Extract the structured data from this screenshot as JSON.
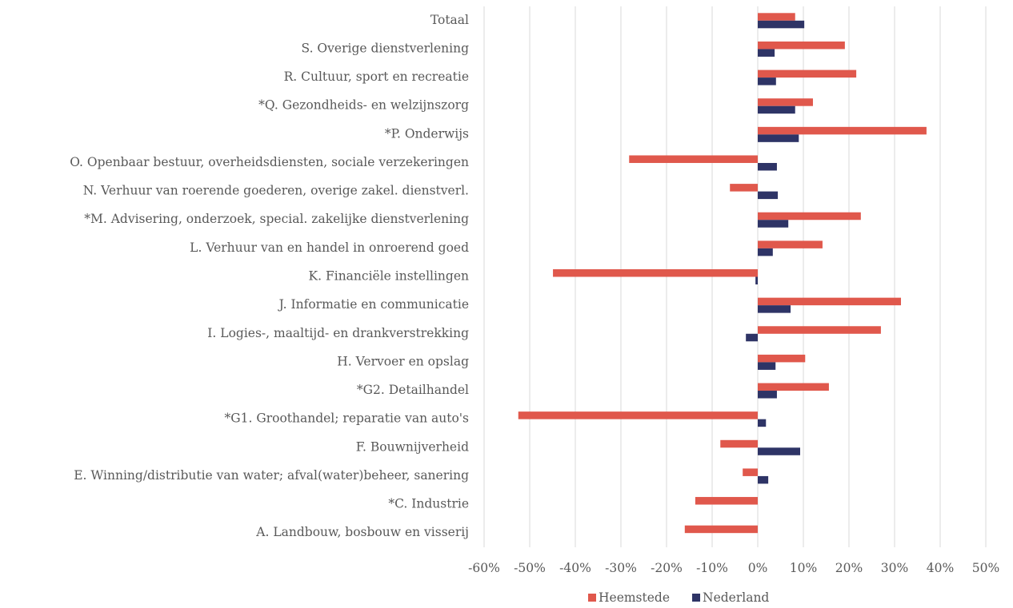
{
  "chart_data": {
    "type": "hbar",
    "categories": [
      "Totaal",
      "S. Overige dienstverlening",
      "R. Cultuur, sport en recreatie",
      "*Q. Gezondheids- en welzijnszorg",
      "*P. Onderwijs",
      "O. Openbaar bestuur, overheidsdiensten, sociale verzekeringen",
      "N. Verhuur van roerende goederen, overige zakel. dienstverl.",
      "*M. Advisering, onderzoek, special. zakelijke dienstverlening",
      "L. Verhuur van en handel in onroerend goed",
      "K. Financiële instellingen",
      "J. Informatie en communicatie",
      "I. Logies-, maaltijd- en drankverstrekking",
      "H. Vervoer en opslag",
      "*G2. Detailhandel",
      "*G1. Groothandel; reparatie van auto's",
      "F. Bouwnijverheid",
      "E. Winning/distributie van water; afval(water)beheer, sanering",
      "*C. Industrie",
      "A. Landbouw, bosbouw en visserij"
    ],
    "series": [
      {
        "name": "Heemstede",
        "color": "#e0584c",
        "values": [
          8.2,
          19.1,
          21.6,
          12.1,
          37.0,
          -28.2,
          -6.1,
          22.6,
          14.2,
          -44.9,
          31.4,
          27.0,
          10.4,
          15.6,
          -52.5,
          -8.2,
          -3.3,
          -13.7,
          -16.0
        ]
      },
      {
        "name": "Nederland",
        "color": "#2e3466",
        "values": [
          10.2,
          3.7,
          4.0,
          8.2,
          9.0,
          4.2,
          4.4,
          6.7,
          3.3,
          -0.5,
          7.2,
          -2.6,
          3.9,
          4.2,
          1.8,
          9.3,
          2.3,
          0,
          0
        ]
      }
    ],
    "xlim": [
      -60,
      50
    ],
    "xticks": [
      {
        "value": -60,
        "label": "-60%"
      },
      {
        "value": -50,
        "label": "-50%"
      },
      {
        "value": -40,
        "label": "-40%"
      },
      {
        "value": -30,
        "label": "-30%"
      },
      {
        "value": -20,
        "label": "-20%"
      },
      {
        "value": -10,
        "label": "-10%"
      },
      {
        "value": 0,
        "label": "0%"
      },
      {
        "value": 10,
        "label": "10%"
      },
      {
        "value": 20,
        "label": "20%"
      },
      {
        "value": 30,
        "label": "30%"
      },
      {
        "value": 40,
        "label": "40%"
      },
      {
        "value": 50,
        "label": "50%"
      }
    ],
    "grid": true,
    "legend": "bottom"
  }
}
